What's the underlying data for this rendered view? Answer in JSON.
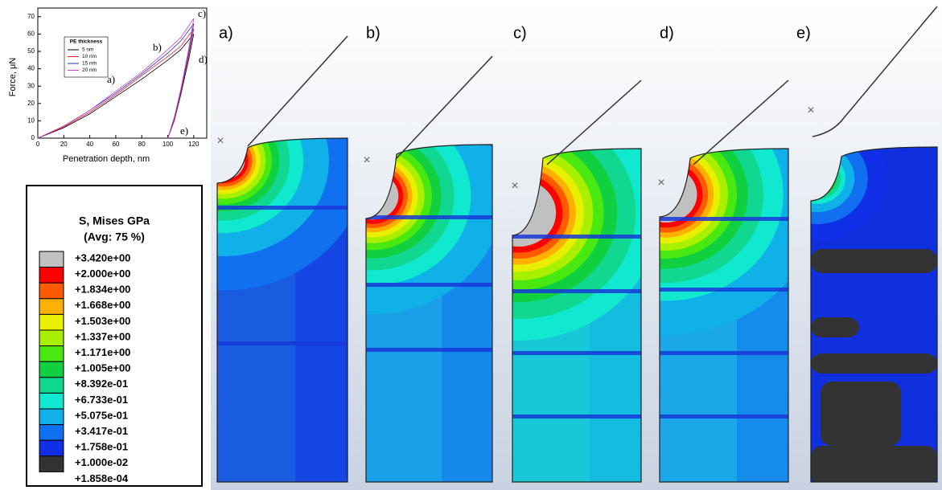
{
  "chart_data": {
    "type": "line",
    "x_label": "Penetration depth, nm",
    "y_label": "Force, μN",
    "legend_title": "PE thickness",
    "x": [
      0,
      20,
      40,
      60,
      80,
      100,
      110,
      120,
      116,
      110,
      105,
      100
    ],
    "series": [
      {
        "name": "5 nm",
        "color": "#000000",
        "values": [
          0,
          6,
          14,
          24,
          34,
          45,
          51,
          60,
          45,
          25,
          10,
          0
        ]
      },
      {
        "name": "10 nm",
        "color": "#e0202a",
        "values": [
          0,
          6.5,
          15,
          25,
          36,
          47,
          53,
          63,
          47,
          26,
          10,
          0
        ]
      },
      {
        "name": "15 nm",
        "color": "#2030c0",
        "values": [
          0,
          7,
          16,
          26,
          37,
          49,
          56,
          66,
          49,
          27,
          11,
          0
        ]
      },
      {
        "name": "20 nm",
        "color": "#d040d0",
        "values": [
          0,
          7,
          16,
          27,
          38,
          51,
          58,
          69,
          51,
          28,
          12,
          0
        ]
      }
    ],
    "xlim": [
      0,
      130
    ],
    "ylim": [
      0,
      75
    ],
    "xticks": [
      0,
      20,
      40,
      60,
      80,
      100,
      120
    ],
    "yticks": [
      0,
      10,
      20,
      30,
      40,
      50,
      60,
      70
    ],
    "annotations": [
      "a)",
      "b)",
      "c)",
      "d)",
      "e)"
    ]
  },
  "colorbar": {
    "title": "S, Mises GPa",
    "subtitle": "(Avg: 75 %)",
    "labels": [
      "+3.420e+00",
      "+2.000e+00",
      "+1.834e+00",
      "+1.668e+00",
      "+1.503e+00",
      "+1.337e+00",
      "+1.171e+00",
      "+1.005e+00",
      "+8.392e-01",
      "+6.733e-01",
      "+5.075e-01",
      "+3.417e-01",
      "+1.758e-01",
      "+1.000e-02",
      "+1.858e-04"
    ],
    "colors": [
      "#c0c0c0",
      "#ff0000",
      "#ff5a00",
      "#ffb000",
      "#e8f000",
      "#a8f000",
      "#48e810",
      "#10d040",
      "#10d890",
      "#10e8d0",
      "#10b0e8",
      "#1070f0",
      "#1030e8",
      "#333333"
    ]
  },
  "panels": {
    "labels": [
      "a)",
      "b)",
      "c)",
      "d)",
      "e)"
    ]
  }
}
